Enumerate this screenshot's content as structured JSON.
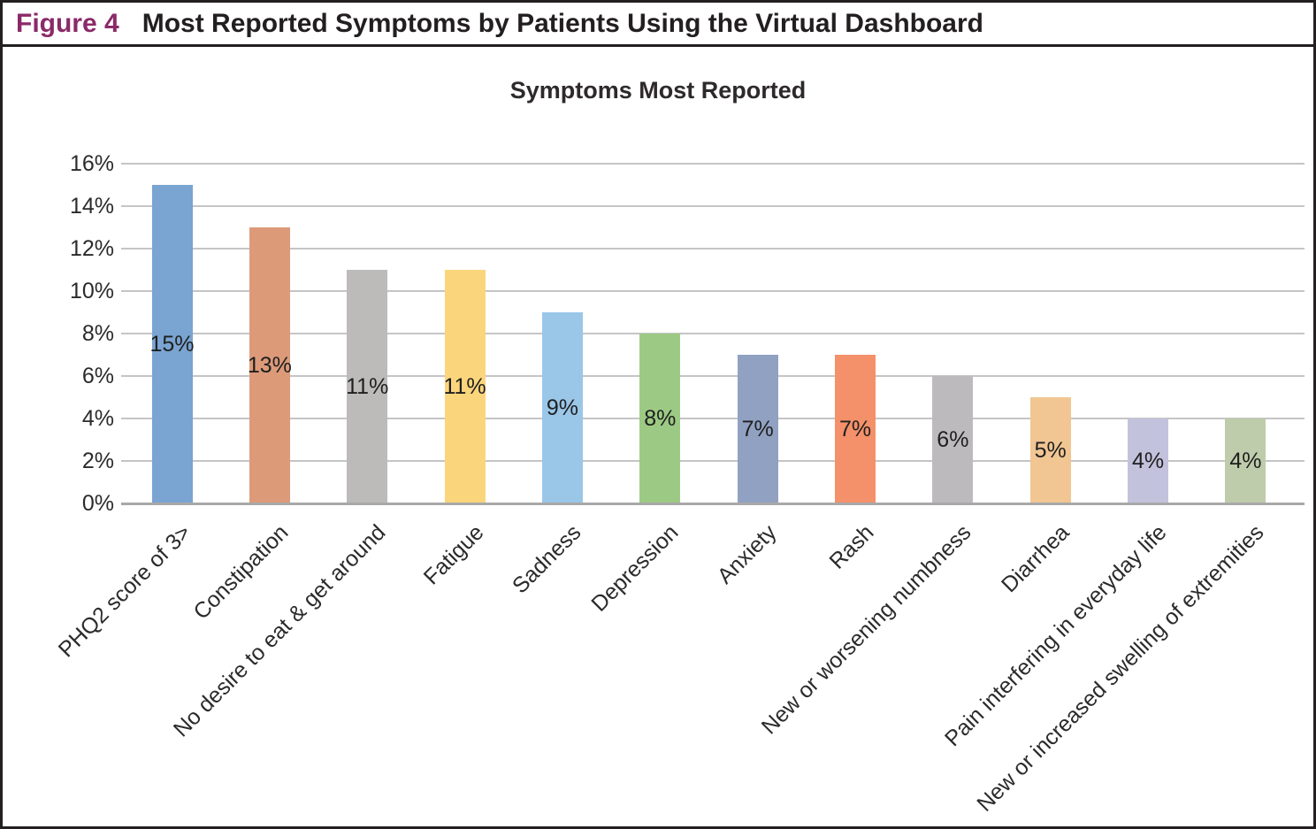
{
  "figure": {
    "label": "Figure 4",
    "title": "Most Reported Symptoms by Patients Using the Virtual Dashboard",
    "label_color": "#8b2a68",
    "border_color": "#231f20"
  },
  "chart_data": {
    "type": "bar",
    "title": "Symptoms Most Reported",
    "xlabel": "",
    "ylabel": "",
    "categories": [
      "PHQ2 score of 3>",
      "Constipation",
      "No desire to eat & get around",
      "Fatigue",
      "Sadness",
      "Depression",
      "Anxiety",
      "Rash",
      "New or worsening numbness",
      "Diarrhea",
      "Pain interfering in everyday life",
      "New or increased swelling of extremities"
    ],
    "values": [
      15,
      13,
      11,
      11,
      9,
      8,
      7,
      7,
      6,
      5,
      4,
      4
    ],
    "value_labels": [
      "15%",
      "13%",
      "11%",
      "11%",
      "9%",
      "8%",
      "7%",
      "7%",
      "6%",
      "5%",
      "4%",
      "4%"
    ],
    "bar_colors": [
      "#7aa4d1",
      "#dc9a79",
      "#bdbaba",
      "#fbd57c",
      "#9ac6e8",
      "#9cca84",
      "#91a1c2",
      "#f4906a",
      "#bdbabd",
      "#f1c693",
      "#c3c2dd",
      "#bfccab"
    ],
    "ylim": [
      0,
      16
    ],
    "ytick_step": 2,
    "ytick_labels": [
      "0%",
      "2%",
      "4%",
      "6%",
      "8%",
      "10%",
      "12%",
      "14%",
      "16%"
    ],
    "grid": true,
    "gridline_color": "#c5c5c5",
    "baseline_color": "#a8a8a8",
    "legend": "none",
    "bar_label_position": "inside-center",
    "xtick_rotation_deg": 45
  }
}
